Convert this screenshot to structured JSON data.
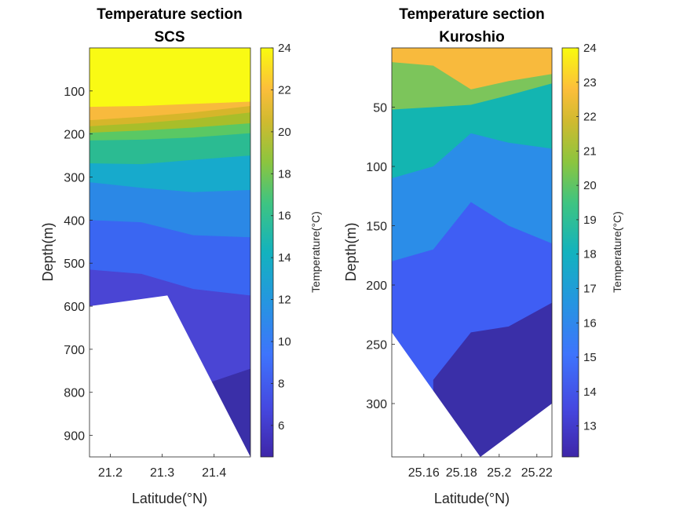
{
  "chart_data": [
    {
      "type": "contour",
      "title": "Temperature section",
      "subtitle": "SCS",
      "xlabel": "Latitude(°N)",
      "ylabel": "Depth(m)",
      "xlim": [
        21.16,
        21.47
      ],
      "ylim": [
        0,
        950
      ],
      "y_reversed": true,
      "xticks": [
        21.2,
        21.3,
        21.4
      ],
      "xtick_labels": [
        "21.2",
        "21.3",
        "21.4"
      ],
      "yticks": [
        100,
        200,
        300,
        400,
        500,
        600,
        700,
        800,
        900
      ],
      "ytick_labels": [
        "100",
        "200",
        "300",
        "400",
        "500",
        "600",
        "700",
        "800",
        "900"
      ],
      "colorbar": {
        "label": "Temperature(°C)",
        "range": [
          4.5,
          24
        ],
        "ticks": [
          6,
          8,
          10,
          12,
          14,
          16,
          18,
          20,
          22,
          24
        ],
        "tick_labels": [
          "6",
          "8",
          "10",
          "12",
          "14",
          "16",
          "18",
          "20",
          "22",
          "24"
        ]
      },
      "levels": [
        {
          "temperature": 23.5,
          "depth_top": [
            0,
            0,
            0,
            0
          ],
          "color": "#f9fa14"
        },
        {
          "temperature": 21.5,
          "depth_top": [
            137,
            135,
            130,
            125
          ],
          "color": "#f8ba3d"
        },
        {
          "temperature": 19.5,
          "depth_top": [
            168,
            160,
            150,
            135
          ],
          "color": "#d6b62a"
        },
        {
          "temperature": 17.5,
          "depth_top": [
            182,
            175,
            165,
            150
          ],
          "color": "#a8be2a"
        },
        {
          "temperature": 15.5,
          "depth_top": [
            197,
            192,
            185,
            175
          ],
          "color": "#5ac864"
        },
        {
          "temperature": 13.5,
          "depth_top": [
            215,
            213,
            208,
            198
          ],
          "color": "#2bbb92"
        },
        {
          "temperature": 11.5,
          "depth_top": [
            268,
            270,
            260,
            250
          ],
          "color": "#17aacc"
        },
        {
          "temperature": 9.5,
          "depth_top": [
            312,
            325,
            335,
            330
          ],
          "color": "#2b88e6"
        },
        {
          "temperature": 7.5,
          "depth_top": [
            400,
            405,
            435,
            440
          ],
          "color": "#3a66f2"
        },
        {
          "temperature": 5.8,
          "depth_top": [
            515,
            525,
            560,
            575
          ],
          "color": "#4a45d4"
        },
        {
          "temperature": 4.8,
          "depth_top": [
            null,
            null,
            790,
            745
          ],
          "color": "#3a2fa8"
        }
      ],
      "level_latitudes": [
        21.16,
        21.26,
        21.36,
        21.47
      ],
      "seafloor": [
        [
          21.16,
          600
        ],
        [
          21.31,
          575
        ],
        [
          21.47,
          950
        ]
      ]
    },
    {
      "type": "contour",
      "title": "Temperature section",
      "subtitle": "Kuroshio",
      "xlabel": "Latitude(°N)",
      "ylabel": "Depth(m)",
      "xlim": [
        25.143,
        25.228
      ],
      "ylim": [
        0,
        345
      ],
      "y_reversed": true,
      "xticks": [
        25.16,
        25.18,
        25.2,
        25.22
      ],
      "xtick_labels": [
        "25.16",
        "25.18",
        "25.2",
        "25.22"
      ],
      "yticks": [
        50,
        100,
        150,
        200,
        250,
        300
      ],
      "ytick_labels": [
        "50",
        "100",
        "150",
        "200",
        "250",
        "300"
      ],
      "colorbar": {
        "label": "Temperature(°C)",
        "range": [
          12.1,
          24
        ],
        "ticks": [
          13,
          14,
          15,
          16,
          17,
          18,
          19,
          20,
          21,
          22,
          23,
          24
        ],
        "tick_labels": [
          "13",
          "14",
          "15",
          "16",
          "17",
          "18",
          "19",
          "20",
          "21",
          "22",
          "23",
          "24"
        ]
      },
      "levels": [
        {
          "temperature": 23.5,
          "depth_top": [
            0,
            0,
            0,
            0,
            0
          ],
          "color": "#f9fa14"
        },
        {
          "temperature": 22.0,
          "depth_top": [
            0,
            0,
            0,
            0,
            0
          ],
          "color": "#f8ba3d"
        },
        {
          "temperature": 19.5,
          "depth_top": [
            12,
            15,
            35,
            28,
            22
          ],
          "color": "#7cc55b"
        },
        {
          "temperature": 17.0,
          "depth_top": [
            52,
            50,
            48,
            40,
            30
          ],
          "color": "#13b5b1"
        },
        {
          "temperature": 16.0,
          "depth_top": [
            110,
            100,
            72,
            80,
            85
          ],
          "color": "#2b8de8"
        },
        {
          "temperature": 14.5,
          "depth_top": [
            180,
            170,
            130,
            150,
            165
          ],
          "color": "#3f5ef4"
        },
        {
          "temperature": 13.5,
          "depth_top": [
            null,
            280,
            240,
            235,
            215
          ],
          "color": "#3a2fa8"
        }
      ],
      "level_latitudes": [
        25.143,
        25.165,
        25.185,
        25.205,
        25.228
      ],
      "seafloor": [
        [
          25.143,
          240
        ],
        [
          25.19,
          345
        ],
        [
          25.228,
          300
        ]
      ]
    }
  ]
}
